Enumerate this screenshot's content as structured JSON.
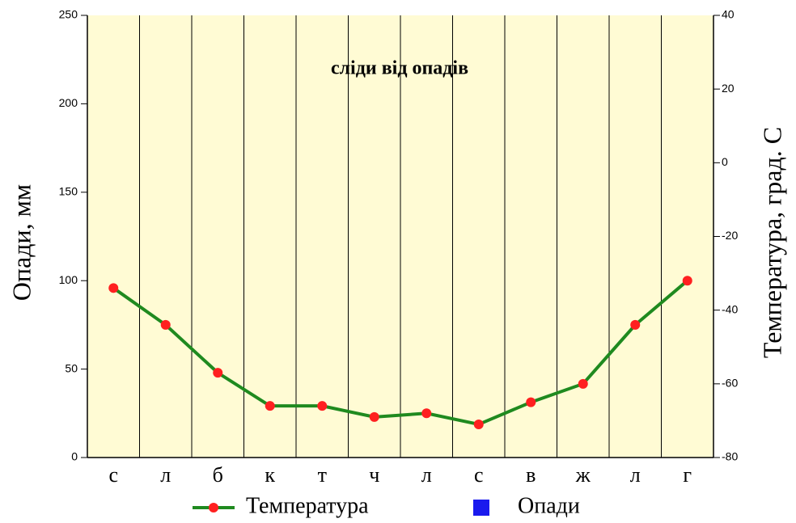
{
  "chart_data": {
    "type": "climate",
    "annotation": "сліди від опадів",
    "ylabel": "Опади, мм",
    "y2label": "Температура, град. С",
    "categories": [
      "с",
      "л",
      "б",
      "к",
      "т",
      "ч",
      "л",
      "с",
      "в",
      "ж",
      "л",
      "г"
    ],
    "series": [
      {
        "name": "Температура",
        "color": "#1f8a1f",
        "marker_color": "#ff2020",
        "axis": "y2",
        "values": [
          -34,
          -44,
          -57,
          -66,
          -66,
          -69,
          -68,
          -71,
          -65,
          -60,
          -44,
          -32
        ]
      },
      {
        "name": "Опади",
        "color": "#1a1aee",
        "values": [
          0,
          0,
          0,
          0,
          0,
          0,
          0,
          0,
          0,
          0,
          0,
          0
        ]
      }
    ],
    "ylim": [
      0,
      250
    ],
    "yticks": [
      0,
      50,
      100,
      150,
      200,
      250
    ],
    "y2lim": [
      -80,
      40
    ],
    "y2ticks": [
      -80,
      -60,
      -40,
      -20,
      0,
      20,
      40
    ],
    "background": "#fffbd4"
  }
}
